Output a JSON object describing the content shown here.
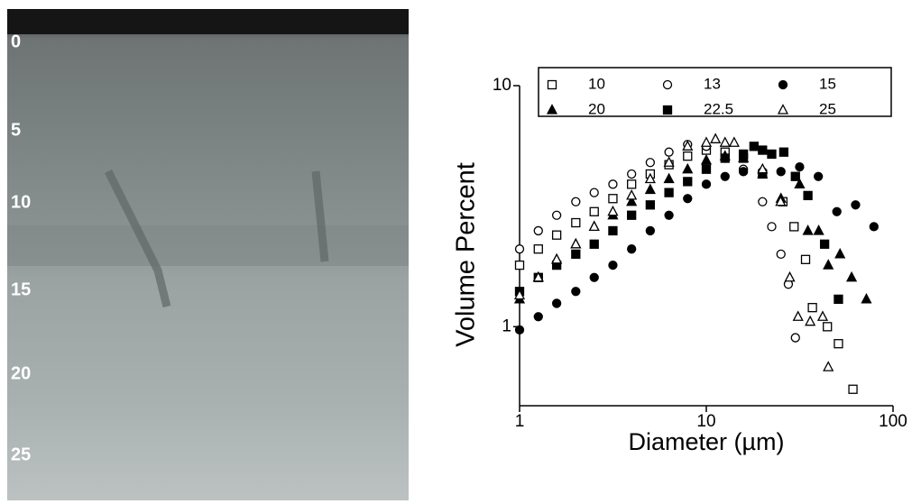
{
  "image_depth_labels": [
    "0",
    "5",
    "10",
    "15",
    "20",
    "25"
  ],
  "chart_data": {
    "type": "scatter",
    "xlabel": "Diameter (µm)",
    "ylabel": "Volume Percent",
    "xscale": "log",
    "yscale": "log",
    "xlim": [
      1,
      100
    ],
    "ylim": [
      0.47,
      10
    ],
    "xticks": [
      1,
      10,
      100
    ],
    "yticks": [
      1,
      10
    ],
    "legend": "top",
    "series": [
      {
        "name": "10",
        "color": "#000000",
        "marker": "square",
        "filled": false,
        "x": [
          1,
          1.26,
          1.58,
          2,
          2.51,
          3.16,
          3.98,
          5.01,
          6.31,
          7.94,
          10,
          12.6,
          15.8,
          20,
          25.7,
          29.5,
          34,
          37,
          44.5,
          51,
          61
        ],
        "values": [
          1.8,
          2.1,
          2.4,
          2.7,
          3.0,
          3.4,
          3.9,
          4.3,
          4.7,
          5.1,
          5.4,
          5.3,
          5.0,
          4.3,
          3.3,
          2.6,
          1.9,
          1.2,
          1.0,
          0.85,
          0.55
        ]
      },
      {
        "name": "13",
        "color": "#000000",
        "marker": "circle",
        "filled": false,
        "x": [
          1,
          1.26,
          1.58,
          2,
          2.51,
          3.16,
          3.98,
          5.01,
          6.31,
          7.94,
          10,
          12.6,
          15.8,
          20,
          22.4,
          25.1,
          27.5,
          30
        ],
        "values": [
          2.1,
          2.5,
          2.9,
          3.3,
          3.6,
          3.9,
          4.3,
          4.8,
          5.3,
          5.7,
          5.6,
          5.0,
          4.5,
          3.3,
          2.6,
          2.0,
          1.5,
          0.9
        ]
      },
      {
        "name": "15",
        "color": "#000000",
        "marker": "circle",
        "filled": true,
        "x": [
          1,
          1.26,
          1.58,
          2,
          2.51,
          3.16,
          3.98,
          5.01,
          6.31,
          7.94,
          10,
          12.6,
          15.8,
          20,
          25.1,
          31.6,
          39.8,
          50,
          63,
          79
        ],
        "values": [
          0.97,
          1.1,
          1.25,
          1.4,
          1.6,
          1.8,
          2.1,
          2.5,
          2.9,
          3.4,
          3.9,
          4.2,
          4.4,
          4.4,
          4.4,
          4.6,
          4.2,
          3.0,
          3.2,
          2.6
        ]
      },
      {
        "name": "20",
        "color": "#000000",
        "marker": "triangle",
        "filled": true,
        "x": [
          1,
          1.26,
          1.58,
          2,
          2.51,
          3.16,
          3.98,
          5.01,
          6.31,
          7.94,
          10,
          12.6,
          15.8,
          20,
          25.1,
          31.6,
          35,
          40,
          45,
          52,
          60,
          72
        ],
        "values": [
          1.3,
          1.6,
          1.9,
          2.2,
          2.6,
          2.9,
          3.3,
          3.7,
          4.1,
          4.5,
          4.9,
          5.1,
          5.0,
          4.3,
          3.4,
          3.9,
          2.5,
          2.5,
          1.8,
          2.0,
          1.6,
          1.3
        ]
      },
      {
        "name": "22.5",
        "color": "#000000",
        "marker": "square",
        "filled": true,
        "x": [
          1,
          1.26,
          1.58,
          2,
          2.51,
          3.16,
          3.98,
          5.01,
          6.31,
          7.94,
          10,
          12.6,
          15.8,
          18,
          20,
          22.4,
          26,
          30,
          35,
          43,
          51
        ],
        "values": [
          1.4,
          1.6,
          1.8,
          2.0,
          2.2,
          2.5,
          2.9,
          3.2,
          3.6,
          4.0,
          4.5,
          5.0,
          5.2,
          5.6,
          5.4,
          5.2,
          5.3,
          4.2,
          3.5,
          2.2,
          1.3
        ]
      },
      {
        "name": "25",
        "color": "#000000",
        "marker": "triangle",
        "filled": false,
        "x": [
          1,
          1.26,
          1.58,
          2,
          2.51,
          3.16,
          3.98,
          5.01,
          6.31,
          7.94,
          10,
          11.2,
          12.6,
          14.1,
          20,
          25,
          28,
          31,
          36,
          42,
          45
        ],
        "values": [
          1.35,
          1.6,
          1.9,
          2.2,
          2.6,
          3.0,
          3.5,
          4.1,
          4.8,
          5.6,
          5.8,
          6.0,
          5.8,
          5.8,
          4.5,
          3.3,
          1.6,
          1.1,
          1.05,
          1.1,
          0.68
        ]
      }
    ]
  }
}
